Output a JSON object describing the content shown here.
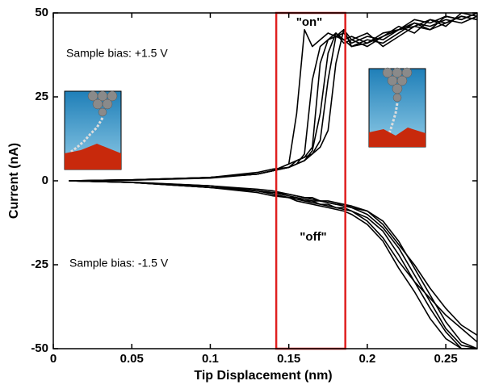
{
  "chart_data": {
    "type": "line",
    "x_label": "Tip Displacement (nm)",
    "y_label": "Current (nA)",
    "xlim": [
      0,
      0.27
    ],
    "ylim": [
      -50,
      50
    ],
    "xticks": [
      0,
      0.05,
      0.1,
      0.15,
      0.2,
      0.25
    ],
    "yticks": [
      -50,
      -25,
      0,
      25,
      50
    ],
    "annotations": [
      "\"on\"",
      "\"off\"",
      "Sample bias: +1.5 V",
      "Sample bias: -1.5 V"
    ],
    "highlight": {
      "x": [
        0.142,
        0.186
      ],
      "color": "#e02020"
    },
    "x": [
      0.01,
      0.05,
      0.1,
      0.13,
      0.14,
      0.15,
      0.155,
      0.16,
      0.165,
      0.17,
      0.175,
      0.18,
      0.185,
      0.19,
      0.2,
      0.21,
      0.22,
      0.23,
      0.24,
      0.25,
      0.26,
      0.27
    ],
    "series": [
      {
        "color": "#000000",
        "values": [
          0,
          0.3,
          1,
          2,
          3,
          5,
          20,
          45,
          40,
          42,
          44,
          43,
          42,
          40,
          41,
          44,
          45,
          47,
          46,
          48,
          47,
          49
        ]
      },
      {
        "color": "#000000",
        "values": [
          0,
          0.3,
          1,
          2,
          3,
          4,
          5,
          8,
          30,
          40,
          42,
          44,
          41,
          42,
          40,
          43,
          45,
          46,
          48,
          47,
          49,
          48
        ]
      },
      {
        "color": "#000000",
        "values": [
          0,
          0.3,
          1,
          2.5,
          3.5,
          4,
          6,
          7,
          10,
          35,
          42,
          43,
          45,
          40,
          42,
          41,
          44,
          47,
          45,
          49,
          48,
          50
        ]
      },
      {
        "color": "#000000",
        "values": [
          0,
          0.2,
          0.8,
          2,
          3,
          4,
          5,
          6,
          9,
          20,
          38,
          44,
          42,
          43,
          41,
          43,
          46,
          44,
          48,
          46,
          50,
          49
        ]
      },
      {
        "color": "#000000",
        "values": [
          0,
          0.3,
          1,
          2,
          3,
          5,
          6,
          7,
          8,
          12,
          30,
          43,
          44,
          41,
          43,
          42,
          45,
          48,
          47,
          49,
          48,
          50
        ]
      },
      {
        "color": "#000000",
        "values": [
          0,
          0.2,
          1,
          2,
          3,
          4,
          5,
          6,
          8,
          10,
          15,
          35,
          45,
          42,
          44,
          40,
          43,
          46,
          45,
          47,
          49,
          48
        ]
      },
      {
        "color": "#000000",
        "values": [
          0,
          -0.5,
          -1.5,
          -3,
          -3.5,
          -4,
          -4.5,
          -5,
          -5.5,
          -6,
          -6.5,
          -7,
          -7,
          -7.5,
          -9,
          -12,
          -18,
          -26,
          -34,
          -42,
          -48,
          -50
        ]
      },
      {
        "color": "#000000",
        "values": [
          0,
          -0.5,
          -2,
          -3,
          -4,
          -5,
          -5,
          -6,
          -6,
          -7,
          -7,
          -8,
          -8,
          -9,
          -11,
          -15,
          -22,
          -30,
          -38,
          -45,
          -50,
          -50
        ]
      },
      {
        "color": "#000000",
        "values": [
          0,
          -0.5,
          -1.5,
          -2.5,
          -3,
          -4,
          -4.5,
          -5,
          -5,
          -6,
          -6,
          -6.5,
          -7,
          -8,
          -10,
          -14,
          -20,
          -28,
          -36,
          -44,
          -49,
          -50
        ]
      },
      {
        "color": "#000000",
        "values": [
          0,
          -0.5,
          -2,
          -3.5,
          -4.5,
          -5,
          -5.5,
          -6,
          -6.5,
          -7,
          -7.5,
          -8,
          -8.5,
          -9,
          -12,
          -17,
          -24,
          -30,
          -35,
          -40,
          -44,
          -48
        ]
      },
      {
        "color": "#000000",
        "values": [
          0,
          -0.4,
          -1.5,
          -3,
          -3.5,
          -4.5,
          -5,
          -5.5,
          -6,
          -6,
          -6.5,
          -7,
          -7.5,
          -8,
          -9,
          -13,
          -19,
          -25,
          -32,
          -38,
          -43,
          -46
        ]
      },
      {
        "color": "#000000",
        "values": [
          0,
          -0.5,
          -2,
          -3,
          -4,
          -5,
          -6,
          -6.5,
          -7,
          -7.5,
          -8,
          -8.5,
          -9,
          -10,
          -13,
          -18,
          -26,
          -33,
          -41,
          -47,
          -50,
          -50
        ]
      }
    ]
  }
}
